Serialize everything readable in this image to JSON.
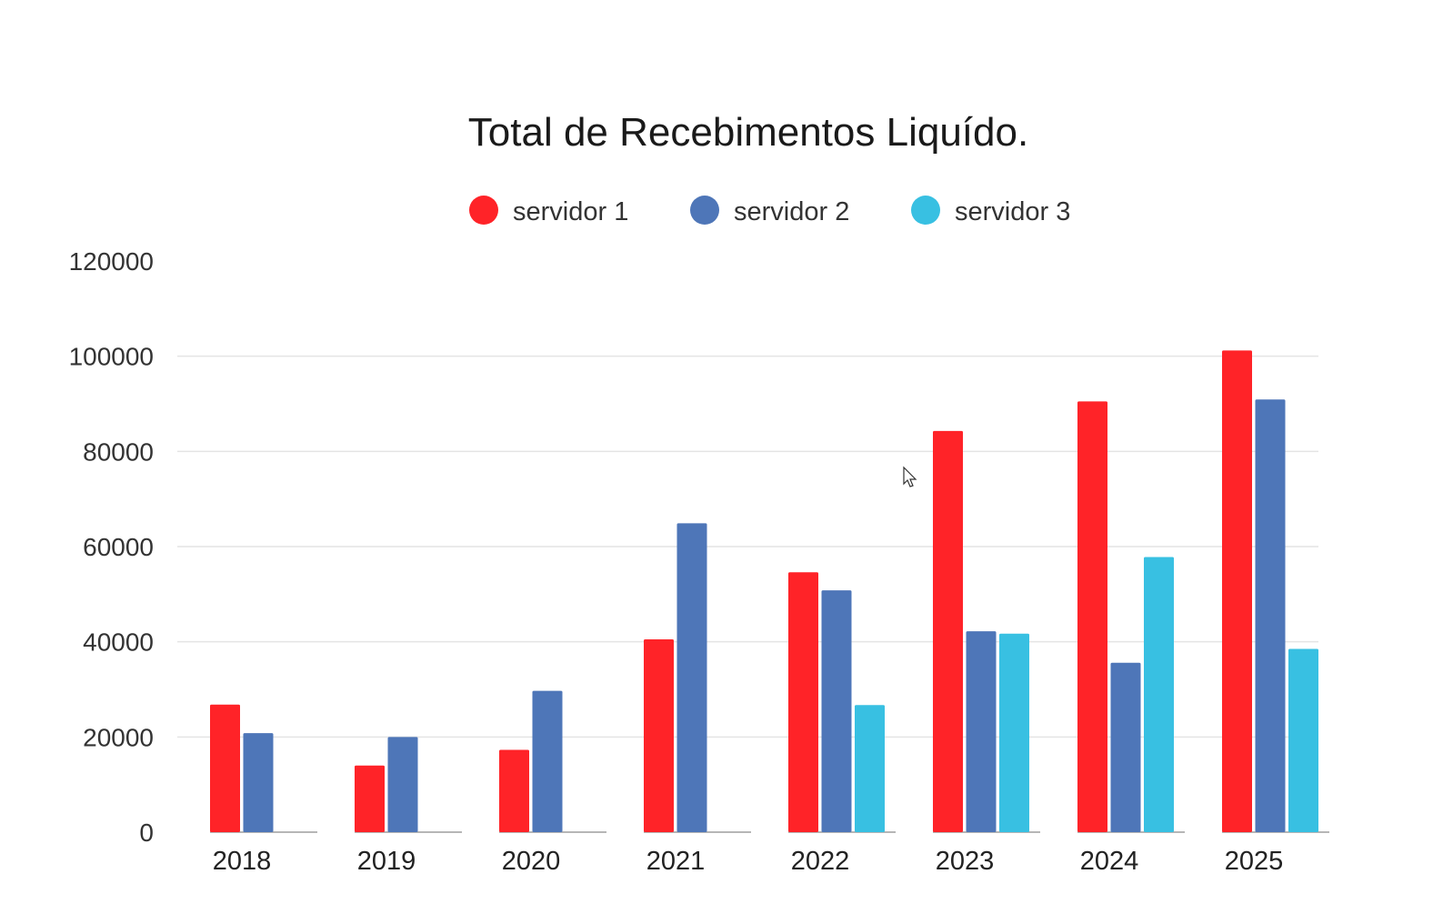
{
  "chart_data": {
    "type": "bar",
    "title": "Total de Recebimentos Liquído.",
    "xlabel": "",
    "ylabel": "",
    "ylim": [
      0,
      120000
    ],
    "yticks": [
      "0",
      "20000",
      "40000",
      "60000",
      "80000",
      "100000",
      "120000"
    ],
    "ytick_values": [
      0,
      20000,
      40000,
      60000,
      80000,
      100000,
      120000
    ],
    "grid": true,
    "legend_position": "top-center",
    "categories": [
      "2018",
      "2019",
      "2020",
      "2021",
      "2022",
      "2023",
      "2024",
      "2025"
    ],
    "series": [
      {
        "name": "servidor 1",
        "color": "#ff2328",
        "values": [
          26800,
          14000,
          17300,
          40500,
          54600,
          84300,
          90500,
          101200
        ]
      },
      {
        "name": "servidor 2",
        "color": "#4e76b8",
        "values": [
          20800,
          20000,
          29700,
          64900,
          50800,
          42200,
          35600,
          90900
        ]
      },
      {
        "name": "servidor 3",
        "color": "#38c0e2",
        "values": [
          0,
          0,
          0,
          0,
          26700,
          41700,
          57800,
          38500
        ]
      }
    ]
  }
}
